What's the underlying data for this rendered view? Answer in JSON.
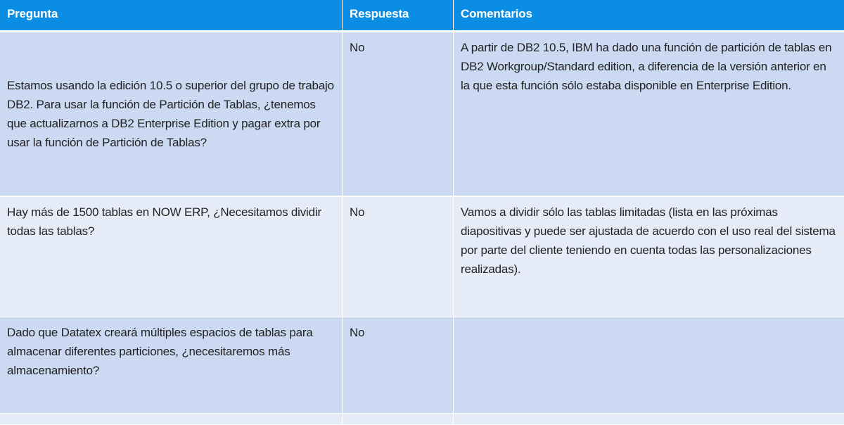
{
  "header": {
    "col1": "Pregunta",
    "col2": "Respuesta",
    "col3": "Comentarios"
  },
  "rows": [
    {
      "pregunta": "Estamos usando la edición 10.5 o superior del grupo de trabajo DB2. Para usar la función de Partición de Tablas, ¿tenemos que actualizarnos a DB2 Enterprise Edition y pagar extra por usar la función de Partición de Tablas?",
      "respuesta": "No",
      "comentarios": "A partir de DB2 10.5, IBM ha dado una función de partición de tablas en DB2 Workgroup/Standard edition, a diferencia de la versión anterior en la que esta función sólo estaba disponible en Enterprise Edition."
    },
    {
      "pregunta": "Hay más de 1500 tablas en NOW ERP, ¿Necesitamos dividir todas las tablas?",
      "respuesta": "No",
      "comentarios": "Vamos a dividir sólo las tablas limitadas (lista en las próximas diapositivas y puede ser ajustada de acuerdo con el uso real del sistema por parte del cliente teniendo en cuenta todas las personalizaciones realizadas)."
    },
    {
      "pregunta": "Dado que Datatex creará múltiples espacios de tablas para almacenar diferentes particiones, ¿necesitaremos más almacenamiento?",
      "respuesta": "No",
      "comentarios": ""
    }
  ],
  "colors": {
    "header": "#0a8de2",
    "row_dark": "#cbdaf2",
    "row_light": "#e6ecf7"
  }
}
